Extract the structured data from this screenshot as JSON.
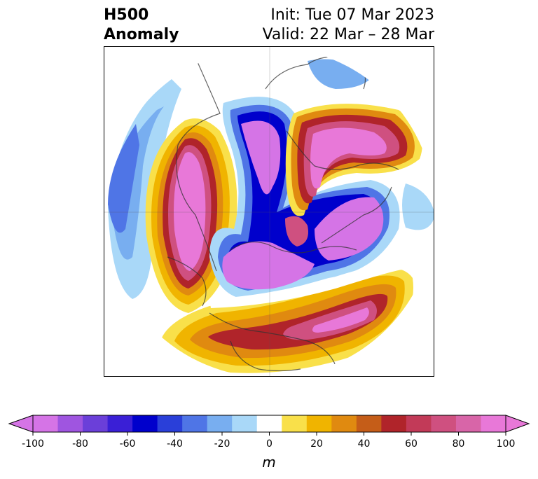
{
  "title": {
    "left_line1": "H500",
    "left_line2": "Anomaly",
    "right_line1": "Init: Tue 07 Mar 2023",
    "right_line2": "Valid: 22 Mar – 28 Mar"
  },
  "colorbar": {
    "units": "m",
    "ticks": [
      "-100",
      "-80",
      "-60",
      "-40",
      "-20",
      "0",
      "20",
      "40",
      "60",
      "80",
      "100"
    ],
    "tick_values": [
      -100,
      -80,
      -60,
      -40,
      -20,
      0,
      20,
      40,
      60,
      80,
      100
    ],
    "levels": [
      -100,
      -90,
      -80,
      -70,
      -60,
      -50,
      -40,
      -30,
      -20,
      -10,
      10,
      20,
      30,
      40,
      50,
      60,
      70,
      80,
      90,
      100
    ],
    "colors": [
      "#d574e6",
      "#9f55e0",
      "#6b3fd9",
      "#3a1fd6",
      "#0000cc",
      "#2a3fd9",
      "#4f75e6",
      "#78aef0",
      "#a9d8f8",
      "#ffffff",
      "#f9e04a",
      "#f0b400",
      "#e08a10",
      "#c55d18",
      "#b0242a",
      "#c23a58",
      "#cf5080",
      "#d865a8",
      "#e878d8"
    ],
    "extend_low_color": "#d574e6",
    "extend_high_color": "#e878d8"
  },
  "map": {
    "projection": "polar stereographic, North Pole",
    "features": {
      "trough_north_atlantic": "negative",
      "ridge_gulf_of_alaska": "positive",
      "ridge_greenland_iceland": "positive",
      "ridge_siberia": "positive",
      "trough_arctic_canada": "negative",
      "ridge_southeast_us": "positive"
    }
  }
}
